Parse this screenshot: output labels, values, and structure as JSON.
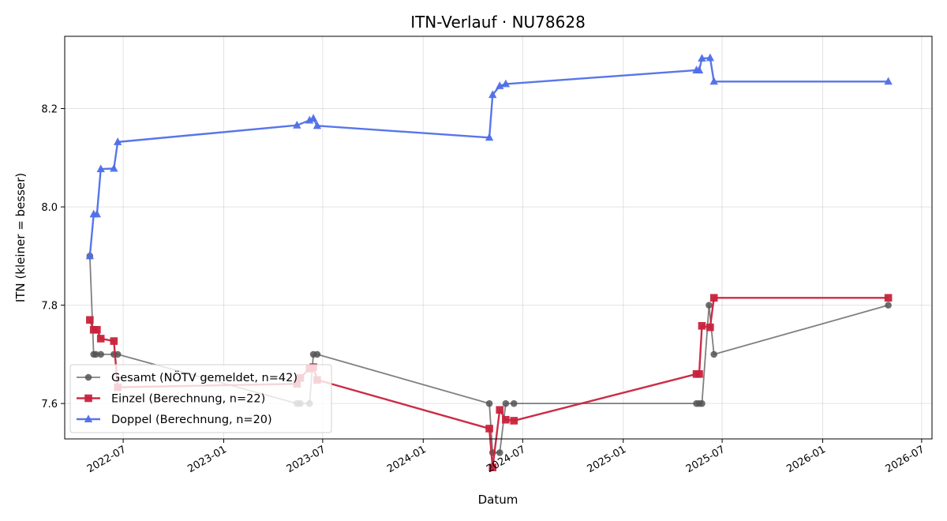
{
  "chart_data": {
    "type": "line",
    "title": "ITN-Verlauf · NU78628",
    "xlabel": "Datum",
    "ylabel": "ITN  (kleiner = besser)",
    "x_type": "date",
    "xlim": [
      "2022-03-16",
      "2026-07-20"
    ],
    "ylim": [
      7.528,
      8.347
    ],
    "x_ticks": [
      "2022-07-01",
      "2023-01-01",
      "2023-07-01",
      "2024-01-01",
      "2024-07-01",
      "2025-01-01",
      "2025-07-01",
      "2026-01-01",
      "2026-07-01"
    ],
    "x_tick_labels": [
      "2022-07",
      "2023-01",
      "2023-07",
      "2024-01",
      "2024-07",
      "2025-01",
      "2025-07",
      "2026-01",
      "2026-07"
    ],
    "y_ticks": [
      7.6,
      7.8,
      8.0,
      8.2
    ],
    "y_tick_labels": [
      "7.6",
      "7.8",
      "8.0",
      "8.2"
    ],
    "grid": true,
    "legend_position": "lower-left",
    "series": [
      {
        "name": "Gesamt (NÖTV gemeldet, n=42)",
        "color": "#555555",
        "marker": "circle",
        "x": [
          "2022-05-01",
          "2022-05-08",
          "2022-05-12",
          "2022-05-21",
          "2022-06-14",
          "2022-06-21",
          "2023-05-15",
          "2023-05-21",
          "2023-06-07",
          "2023-06-14",
          "2023-06-21",
          "2024-05-01",
          "2024-05-07",
          "2024-05-20",
          "2024-05-31",
          "2024-06-15",
          "2025-05-15",
          "2025-05-20",
          "2025-05-25",
          "2025-06-07",
          "2025-06-16",
          "2026-05-01"
        ],
        "values": [
          7.9,
          7.7,
          7.7,
          7.7,
          7.7,
          7.7,
          7.6,
          7.6,
          7.6,
          7.7,
          7.7,
          7.6,
          7.5,
          7.5,
          7.6,
          7.6,
          7.6,
          7.6,
          7.6,
          7.8,
          7.7,
          7.8
        ]
      },
      {
        "name": "Einzel (Berechnung, n=22)",
        "color": "#c8223c",
        "marker": "square",
        "x": [
          "2022-05-01",
          "2022-05-08",
          "2022-05-14",
          "2022-05-21",
          "2022-06-14",
          "2022-06-21",
          "2023-05-15",
          "2023-05-21",
          "2023-06-07",
          "2023-06-14",
          "2023-06-21",
          "2024-05-01",
          "2024-05-07",
          "2024-05-20",
          "2024-05-31",
          "2024-06-15",
          "2025-05-15",
          "2025-05-20",
          "2025-05-25",
          "2025-06-09",
          "2025-06-16",
          "2026-05-01"
        ],
        "values": [
          7.77,
          7.75,
          7.75,
          7.732,
          7.727,
          7.633,
          7.64,
          7.652,
          7.671,
          7.674,
          7.648,
          7.549,
          7.47,
          7.587,
          7.567,
          7.565,
          7.66,
          7.66,
          7.758,
          7.755,
          7.815,
          7.815
        ]
      },
      {
        "name": "Doppel (Berechnung, n=20)",
        "color": "#4f6fe8",
        "marker": "triangle",
        "x": [
          "2022-05-01",
          "2022-05-08",
          "2022-05-14",
          "2022-05-21",
          "2022-06-14",
          "2022-06-21",
          "2023-05-15",
          "2023-06-07",
          "2023-06-14",
          "2023-06-21",
          "2024-05-01",
          "2024-05-07",
          "2024-05-20",
          "2024-05-31",
          "2025-05-15",
          "2025-05-20",
          "2025-05-25",
          "2025-06-09",
          "2025-06-16",
          "2026-05-01"
        ],
        "values": [
          7.9,
          7.985,
          7.985,
          8.077,
          8.078,
          8.132,
          8.166,
          8.176,
          8.18,
          8.165,
          8.141,
          8.228,
          8.246,
          8.25,
          8.278,
          8.278,
          8.302,
          8.303,
          8.255,
          8.255
        ]
      }
    ]
  }
}
